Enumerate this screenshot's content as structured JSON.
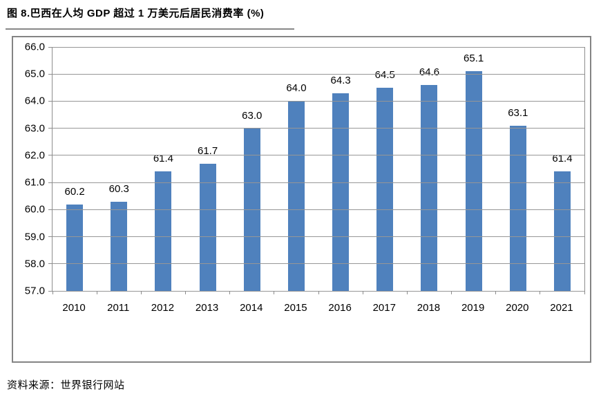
{
  "header": {
    "title": "图 8.巴西在人均 GDP 超过 1 万美元后居民消费率 (%)"
  },
  "footer": {
    "source": "资料来源：世界银行网站"
  },
  "colors": {
    "bar": "#4F81BD",
    "gridline": "#969696",
    "box_border": "#848484",
    "title_rule": "#878787",
    "text": "#000000"
  },
  "chart_data": {
    "type": "bar",
    "title": "图 8.巴西在人均 GDP 超过 1 万美元后居民消费率 (%)",
    "categories": [
      "2010",
      "2011",
      "2012",
      "2013",
      "2014",
      "2015",
      "2016",
      "2017",
      "2018",
      "2019",
      "2020",
      "2021"
    ],
    "values": [
      60.2,
      60.3,
      61.4,
      61.7,
      63.0,
      64.0,
      64.3,
      64.5,
      64.6,
      65.1,
      63.1,
      61.4
    ],
    "value_labels": [
      "60.2",
      "60.3",
      "61.4",
      "61.7",
      "63.0",
      "64.0",
      "64.3",
      "64.5",
      "64.6",
      "65.1",
      "63.1",
      "61.4"
    ],
    "xlabel": "",
    "ylabel": "",
    "ylim": [
      57.0,
      66.0
    ],
    "ytick_step": 1.0,
    "ytick_labels": [
      "57.0",
      "58.0",
      "59.0",
      "60.0",
      "61.0",
      "62.0",
      "63.0",
      "64.0",
      "65.0",
      "66.0"
    ],
    "grid": true,
    "legend": "none"
  }
}
